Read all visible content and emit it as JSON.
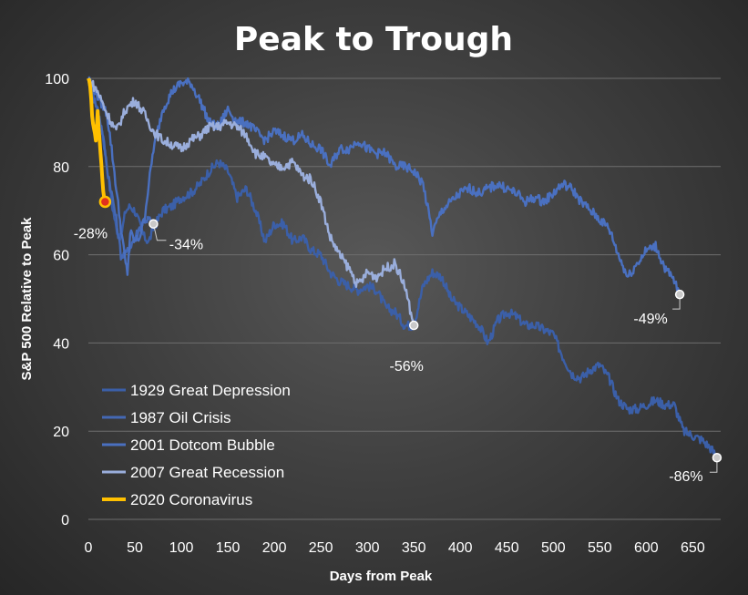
{
  "chart_data": {
    "type": "line",
    "title": "Peak to Trough",
    "xlabel": "Days from Peak",
    "ylabel": "S&P 500 Relative to Peak",
    "xlim": [
      0,
      680
    ],
    "ylim": [
      0,
      100
    ],
    "x_ticks": [
      0,
      50,
      100,
      150,
      200,
      250,
      300,
      350,
      400,
      450,
      500,
      550,
      600,
      650
    ],
    "y_ticks": [
      0,
      20,
      40,
      60,
      80,
      100
    ],
    "grid": true,
    "legend_position": "bottom-left",
    "series": [
      {
        "name": "1929 Great Depression",
        "color": "#3b5fa8",
        "points": [
          [
            0,
            100
          ],
          [
            5,
            97
          ],
          [
            10,
            92
          ],
          [
            15,
            88
          ],
          [
            20,
            80
          ],
          [
            25,
            72
          ],
          [
            30,
            66
          ],
          [
            35,
            64
          ],
          [
            40,
            70
          ],
          [
            45,
            71
          ],
          [
            50,
            70
          ],
          [
            55,
            67
          ],
          [
            60,
            64
          ],
          [
            65,
            63
          ],
          [
            70,
            66
          ],
          [
            80,
            70
          ],
          [
            90,
            71
          ],
          [
            100,
            73
          ],
          [
            110,
            74
          ],
          [
            120,
            76
          ],
          [
            130,
            79
          ],
          [
            140,
            81
          ],
          [
            150,
            79
          ],
          [
            160,
            73
          ],
          [
            170,
            75
          ],
          [
            180,
            70
          ],
          [
            190,
            63
          ],
          [
            200,
            67
          ],
          [
            210,
            67
          ],
          [
            220,
            63
          ],
          [
            230,
            64
          ],
          [
            240,
            61
          ],
          [
            250,
            60
          ],
          [
            260,
            56
          ],
          [
            270,
            54
          ],
          [
            280,
            53
          ],
          [
            290,
            52
          ],
          [
            300,
            53
          ],
          [
            310,
            52
          ],
          [
            320,
            48
          ],
          [
            330,
            47
          ],
          [
            340,
            44
          ],
          [
            350,
            44
          ],
          [
            360,
            53
          ],
          [
            370,
            56
          ],
          [
            380,
            55
          ],
          [
            390,
            50
          ],
          [
            400,
            48
          ],
          [
            410,
            46
          ],
          [
            420,
            44
          ],
          [
            430,
            40
          ],
          [
            440,
            45
          ],
          [
            450,
            47
          ],
          [
            460,
            46
          ],
          [
            470,
            44
          ],
          [
            480,
            44
          ],
          [
            490,
            43
          ],
          [
            500,
            42
          ],
          [
            510,
            37
          ],
          [
            520,
            33
          ],
          [
            530,
            32
          ],
          [
            540,
            34
          ],
          [
            550,
            35
          ],
          [
            560,
            32
          ],
          [
            570,
            27
          ],
          [
            580,
            25
          ],
          [
            590,
            25
          ],
          [
            600,
            26
          ],
          [
            610,
            27
          ],
          [
            620,
            26
          ],
          [
            630,
            26
          ],
          [
            640,
            20
          ],
          [
            650,
            19
          ],
          [
            660,
            18
          ],
          [
            670,
            16
          ],
          [
            676,
            14
          ]
        ]
      },
      {
        "name": "1987 Oil Crisis",
        "color": "#4468b4",
        "points": [
          [
            0,
            100
          ],
          [
            5,
            96
          ],
          [
            10,
            93
          ],
          [
            15,
            88
          ],
          [
            20,
            80
          ],
          [
            25,
            74
          ],
          [
            30,
            68
          ],
          [
            35,
            60
          ],
          [
            40,
            60
          ],
          [
            45,
            62
          ],
          [
            50,
            64
          ],
          [
            55,
            66
          ],
          [
            60,
            68
          ],
          [
            65,
            68
          ],
          [
            70,
            67
          ]
        ]
      },
      {
        "name": "2001 Dotcom Bubble",
        "color": "#4a70c0",
        "points": [
          [
            0,
            100
          ],
          [
            10,
            96
          ],
          [
            20,
            92
          ],
          [
            25,
            84
          ],
          [
            30,
            75
          ],
          [
            35,
            66
          ],
          [
            40,
            58
          ],
          [
            42,
            56
          ],
          [
            45,
            65
          ],
          [
            50,
            63
          ],
          [
            55,
            64
          ],
          [
            60,
            68
          ],
          [
            70,
            84
          ],
          [
            80,
            93
          ],
          [
            90,
            97
          ],
          [
            100,
            99
          ],
          [
            110,
            99
          ],
          [
            120,
            95
          ],
          [
            130,
            90
          ],
          [
            140,
            89
          ],
          [
            150,
            93
          ],
          [
            160,
            90
          ],
          [
            170,
            90
          ],
          [
            180,
            88
          ],
          [
            190,
            86
          ],
          [
            200,
            88
          ],
          [
            210,
            87
          ],
          [
            220,
            86
          ],
          [
            230,
            87
          ],
          [
            240,
            85
          ],
          [
            250,
            84
          ],
          [
            260,
            80
          ],
          [
            270,
            84
          ],
          [
            280,
            84
          ],
          [
            290,
            86
          ],
          [
            300,
            84
          ],
          [
            310,
            83
          ],
          [
            320,
            83
          ],
          [
            330,
            80
          ],
          [
            340,
            80
          ],
          [
            350,
            79
          ],
          [
            360,
            76
          ],
          [
            370,
            65
          ],
          [
            380,
            70
          ],
          [
            390,
            72
          ],
          [
            400,
            74
          ],
          [
            410,
            75
          ],
          [
            420,
            74
          ],
          [
            430,
            75
          ],
          [
            440,
            76
          ],
          [
            450,
            75
          ],
          [
            460,
            74
          ],
          [
            470,
            72
          ],
          [
            480,
            73
          ],
          [
            490,
            72
          ],
          [
            500,
            74
          ],
          [
            510,
            76
          ],
          [
            520,
            75
          ],
          [
            530,
            72
          ],
          [
            540,
            70
          ],
          [
            550,
            68
          ],
          [
            560,
            66
          ],
          [
            570,
            60
          ],
          [
            580,
            55
          ],
          [
            590,
            58
          ],
          [
            600,
            61
          ],
          [
            610,
            62
          ],
          [
            620,
            57
          ],
          [
            630,
            54
          ],
          [
            636,
            51
          ]
        ]
      },
      {
        "name": "2007 Great Recession",
        "color": "#9aaedc",
        "points": [
          [
            0,
            100
          ],
          [
            10,
            97
          ],
          [
            20,
            92
          ],
          [
            30,
            88
          ],
          [
            40,
            93
          ],
          [
            50,
            95
          ],
          [
            60,
            92
          ],
          [
            70,
            88
          ],
          [
            80,
            86
          ],
          [
            90,
            85
          ],
          [
            100,
            84
          ],
          [
            110,
            86
          ],
          [
            120,
            87
          ],
          [
            130,
            89
          ],
          [
            140,
            89
          ],
          [
            150,
            90
          ],
          [
            160,
            89
          ],
          [
            170,
            87
          ],
          [
            180,
            83
          ],
          [
            190,
            82
          ],
          [
            200,
            80
          ],
          [
            210,
            80
          ],
          [
            220,
            81
          ],
          [
            230,
            78
          ],
          [
            240,
            77
          ],
          [
            250,
            72
          ],
          [
            260,
            64
          ],
          [
            270,
            60
          ],
          [
            280,
            57
          ],
          [
            290,
            53
          ],
          [
            300,
            56
          ],
          [
            310,
            55
          ],
          [
            320,
            57
          ],
          [
            330,
            58
          ],
          [
            340,
            53
          ],
          [
            350,
            44
          ]
        ]
      },
      {
        "name": "2020 Coronavirus",
        "color": "#ffc000",
        "points": [
          [
            0,
            100
          ],
          [
            2,
            98
          ],
          [
            4,
            92
          ],
          [
            6,
            88
          ],
          [
            8,
            86
          ],
          [
            10,
            92
          ],
          [
            12,
            86
          ],
          [
            14,
            80
          ],
          [
            16,
            75
          ],
          [
            18,
            72
          ]
        ]
      }
    ],
    "annotations": [
      {
        "text": "-28%",
        "series": "2020 Coronavirus",
        "x": 18,
        "y": 72
      },
      {
        "text": "-34%",
        "series": "1987 Oil Crisis",
        "x": 70,
        "y": 67
      },
      {
        "text": "-56%",
        "series": "2007 Great Recession",
        "x": 350,
        "y": 44
      },
      {
        "text": "-49%",
        "series": "2001 Dotcom Bubble",
        "x": 636,
        "y": 51
      },
      {
        "text": "-86%",
        "series": "1929 Great Depression",
        "x": 676,
        "y": 14
      }
    ]
  }
}
